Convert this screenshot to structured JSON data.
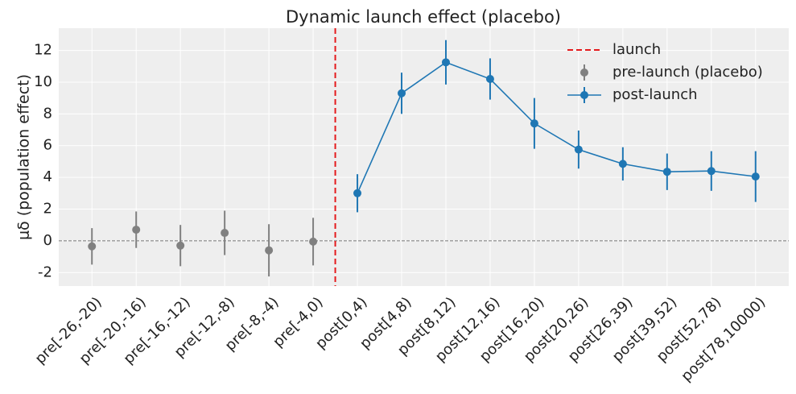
{
  "chart_data": {
    "type": "errorbar",
    "title": "Dynamic launch effect (placebo)",
    "y_label": "μδ (population effect)",
    "categories": [
      "pre[-26,-20)",
      "pre[-20,-16)",
      "pre[-16,-12)",
      "pre[-12,-8)",
      "pre[-8,-4)",
      "pre[-4,0)",
      "post[0,4)",
      "post[4,8)",
      "post[8,12)",
      "post[12,16)",
      "post[16,20)",
      "post[20,26)",
      "post[26,39)",
      "post[39,52)",
      "post[52,78)",
      "post[78,10000)"
    ],
    "series": [
      {
        "name": "pre-launch (placebo)",
        "color": "#808080",
        "line": false,
        "values": [
          -0.35,
          0.7,
          -0.3,
          0.5,
          -0.6,
          -0.05,
          null,
          null,
          null,
          null,
          null,
          null,
          null,
          null,
          null,
          null
        ],
        "errors": [
          1.15,
          1.15,
          1.3,
          1.4,
          1.65,
          1.5,
          null,
          null,
          null,
          null,
          null,
          null,
          null,
          null,
          null,
          null
        ]
      },
      {
        "name": "post-launch",
        "color": "#1f77b4",
        "line": true,
        "values": [
          null,
          null,
          null,
          null,
          null,
          null,
          3.0,
          9.3,
          11.25,
          10.2,
          7.4,
          5.75,
          4.85,
          4.35,
          4.4,
          4.05
        ],
        "errors": [
          null,
          null,
          null,
          null,
          null,
          null,
          1.2,
          1.3,
          1.4,
          1.3,
          1.6,
          1.2,
          1.05,
          1.15,
          1.25,
          1.6
        ]
      }
    ],
    "vline": {
      "name": "launch",
      "x": 5.5,
      "color": "#e41a1c"
    },
    "hline": 0,
    "xlim": [
      -0.75,
      15.75
    ],
    "ylim": [
      -2.85,
      13.4
    ],
    "yticks": [
      -2,
      0,
      2,
      4,
      6,
      8,
      10,
      12
    ],
    "grid": true,
    "legend": "upper right"
  }
}
